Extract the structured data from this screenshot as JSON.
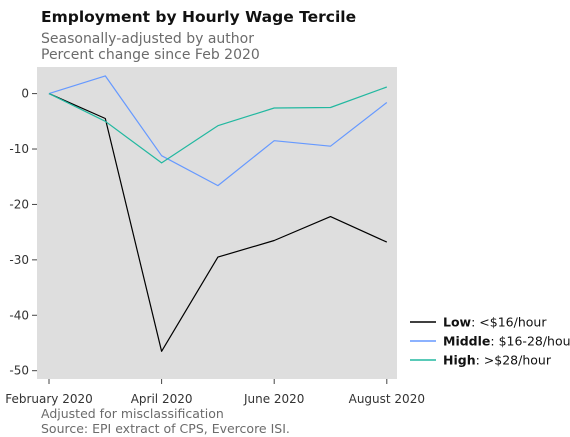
{
  "chart_data": {
    "type": "line",
    "title": "Employment by Hourly Wage Tercile",
    "subtitle": [
      "Seasonally-adjusted by author",
      "Percent change since Feb 2020"
    ],
    "caption": [
      "Adjusted for misclassification",
      "Source: EPI extract of CPS, Evercore ISI."
    ],
    "x": [
      "2020-02",
      "2020-03",
      "2020-04",
      "2020-05",
      "2020-06",
      "2020-07",
      "2020-08"
    ],
    "x_ticks": [
      {
        "month": 0,
        "label": "February 2020"
      },
      {
        "month": 2,
        "label": "April 2020"
      },
      {
        "month": 4,
        "label": "June 2020"
      },
      {
        "month": 6,
        "label": "August 2020"
      }
    ],
    "y_ticks": [
      0,
      -10,
      -20,
      -30,
      -40,
      -50
    ],
    "ylim": [
      -51.5,
      4.8
    ],
    "grid": false,
    "legend_position": "right",
    "series": [
      {
        "name": "Low",
        "range": ": <$16/hour",
        "color": "#000000",
        "values": [
          0,
          -4.5,
          -46.5,
          -29.5,
          -26.5,
          -22.2,
          -26.8
        ]
      },
      {
        "name": "Middle",
        "range": ": $16-28/hour",
        "color": "#6699ff",
        "values": [
          0,
          3.2,
          -11.2,
          -16.6,
          -8.5,
          -9.5,
          -1.6
        ]
      },
      {
        "name": "High",
        "range": ": >$28/hour",
        "color": "#22b8a0",
        "values": [
          0,
          -5.0,
          -12.5,
          -5.8,
          -2.6,
          -2.5,
          1.2
        ]
      }
    ]
  },
  "colors": {
    "panel_background": "#dedede"
  }
}
